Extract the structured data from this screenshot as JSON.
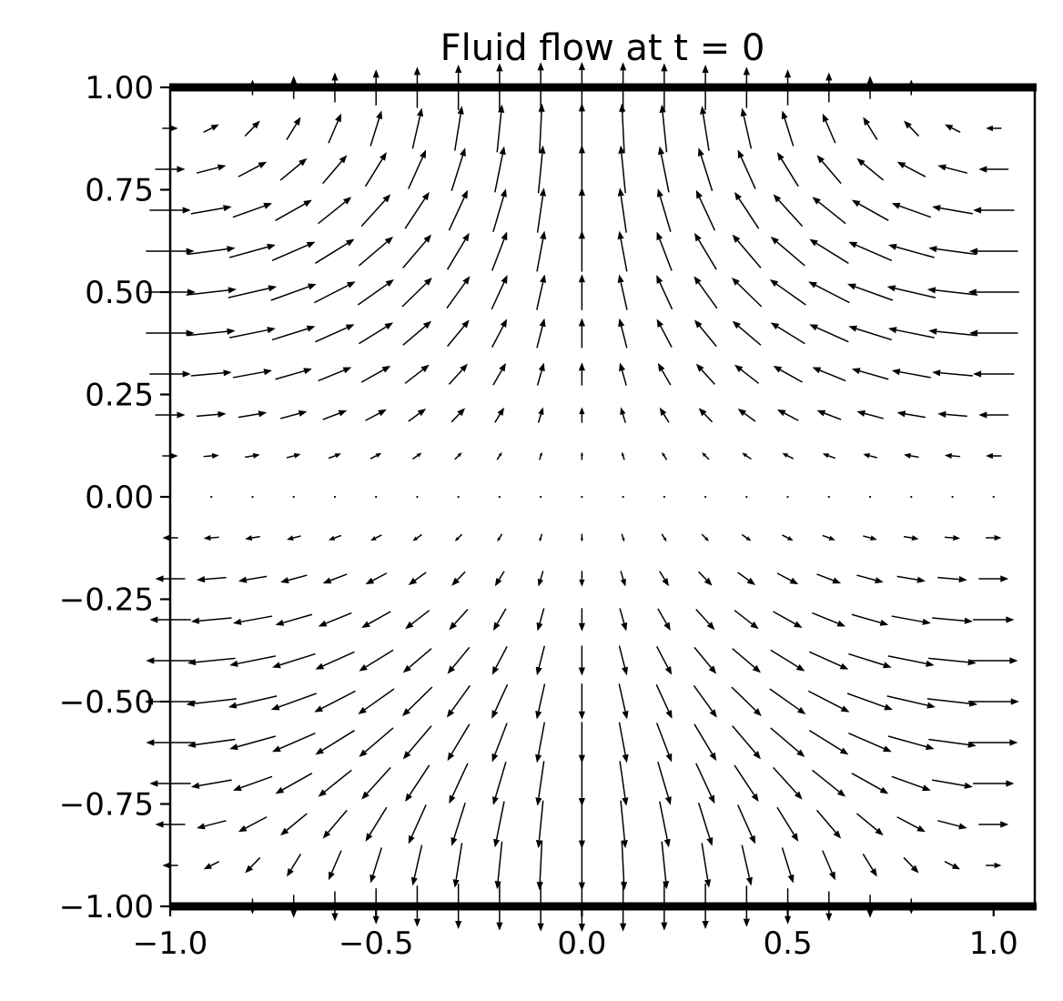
{
  "chart_data": {
    "type": "quiver",
    "title": "Fluid flow at t = 0",
    "xlabel": "",
    "ylabel": "",
    "xlim": [
      -1.0,
      1.1
    ],
    "ylim": [
      -1.0,
      1.0
    ],
    "x_ticks": [
      "−1.0",
      "−0.5",
      "0.0",
      "0.5",
      "1.0"
    ],
    "y_ticks": [
      "1.00",
      "0.75",
      "0.50",
      "0.25",
      "0.00",
      "−0.25",
      "−0.50",
      "−0.75",
      "−1.00"
    ],
    "grid": false,
    "walls": [
      "top",
      "bottom"
    ],
    "field": {
      "u": "-sin(pi*x/2) * sin(pi*y)",
      "v": "cos(pi*x/2) * sin(pi*y/2)",
      "x_range": [
        -1.0,
        1.0
      ],
      "y_range": [
        -1.0,
        1.0
      ],
      "nx": 21,
      "ny": 21
    },
    "colors": {
      "arrows": "#000000",
      "axes": "#000000",
      "background": "#ffffff"
    }
  }
}
